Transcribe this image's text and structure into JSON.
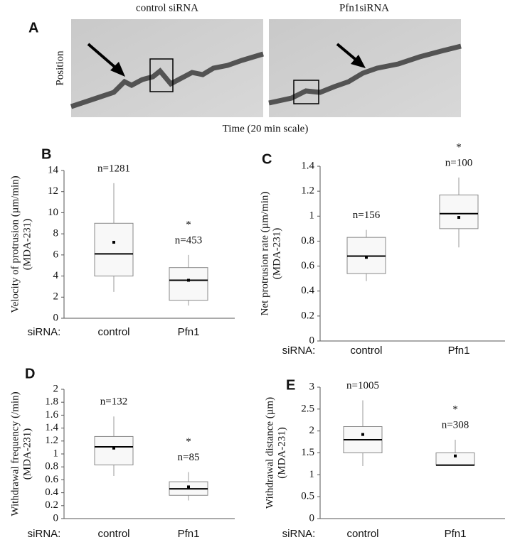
{
  "figure": {
    "panel": "A",
    "left_title": "control siRNA",
    "right_title": "Pfn1siRNA",
    "ylabel": "Position",
    "xlabel": "Time (20 min scale)"
  },
  "chart_data": [
    {
      "type": "box",
      "panel": "B",
      "ylabel": [
        "Velocity of protrusion (µm/min)",
        "(MDA-231)"
      ],
      "group_label": "siRNA:",
      "categories": [
        "control",
        "Pfn1"
      ],
      "boxes": [
        {
          "whislo": 2.5,
          "q1": 4,
          "med": 6.1,
          "q3": 9,
          "whishi": 12.8,
          "mean": 7.2
        },
        {
          "whislo": 1.2,
          "q1": 1.7,
          "med": 3.6,
          "q3": 4.8,
          "whishi": 6,
          "mean": 3.6
        }
      ],
      "n_labels": [
        "n=1281",
        "n=453"
      ],
      "significance": [
        null,
        "*"
      ],
      "ylim": [
        0,
        14
      ],
      "yticks": [
        0,
        2,
        4,
        6,
        8,
        10,
        12,
        14
      ]
    },
    {
      "type": "box",
      "panel": "C",
      "ylabel": [
        "Net protrusion rate (µm/min)",
        "(MDA-231)"
      ],
      "group_label": "siRNA:",
      "categories": [
        "control",
        "Pfn1"
      ],
      "boxes": [
        {
          "whislo": 0.48,
          "q1": 0.54,
          "med": 0.68,
          "q3": 0.83,
          "whishi": 0.89,
          "mean": 0.67
        },
        {
          "whislo": 0.75,
          "q1": 0.9,
          "med": 1.02,
          "q3": 1.17,
          "whishi": 1.31,
          "mean": 0.99
        }
      ],
      "n_labels": [
        "n=156",
        "n=100"
      ],
      "significance": [
        null,
        "*"
      ],
      "ylim": [
        0,
        1.4
      ],
      "yticks": [
        0,
        0.2,
        0.4,
        0.6,
        0.8,
        1,
        1.2,
        1.4
      ]
    },
    {
      "type": "box",
      "panel": "D",
      "ylabel": [
        "Withdrawal frequency (/min)",
        "(MDA-231)"
      ],
      "group_label": "siRNA:",
      "categories": [
        "control",
        "Pfn1"
      ],
      "boxes": [
        {
          "whislo": 0.66,
          "q1": 0.83,
          "med": 1.11,
          "q3": 1.27,
          "whishi": 1.58,
          "mean": 1.09
        },
        {
          "whislo": 0.28,
          "q1": 0.36,
          "med": 0.46,
          "q3": 0.57,
          "whishi": 0.72,
          "mean": 0.49
        }
      ],
      "n_labels": [
        "n=132",
        "n=85"
      ],
      "significance": [
        null,
        "*"
      ],
      "ylim": [
        0,
        2
      ],
      "yticks": [
        0,
        0.2,
        0.4,
        0.6,
        0.8,
        1,
        1.2,
        1.4,
        1.6,
        1.8,
        2
      ]
    },
    {
      "type": "box",
      "panel": "E",
      "ylabel": [
        "Withdrawal distance (µm)",
        "(MDA-231)"
      ],
      "group_label": "siRNA:",
      "categories": [
        "control",
        "Pfn1"
      ],
      "boxes": [
        {
          "whislo": 1.2,
          "q1": 1.5,
          "med": 1.8,
          "q3": 2.1,
          "whishi": 2.7,
          "mean": 1.92
        },
        {
          "whislo": 1.22,
          "q1": 1.22,
          "med": 1.22,
          "q3": 1.5,
          "whishi": 1.8,
          "mean": 1.43
        }
      ],
      "n_labels": [
        "n=1005",
        "n=308"
      ],
      "significance": [
        null,
        "*"
      ],
      "ylim": [
        0,
        3
      ],
      "yticks": [
        0,
        0.5,
        1,
        1.5,
        2,
        2.5,
        3
      ]
    }
  ]
}
